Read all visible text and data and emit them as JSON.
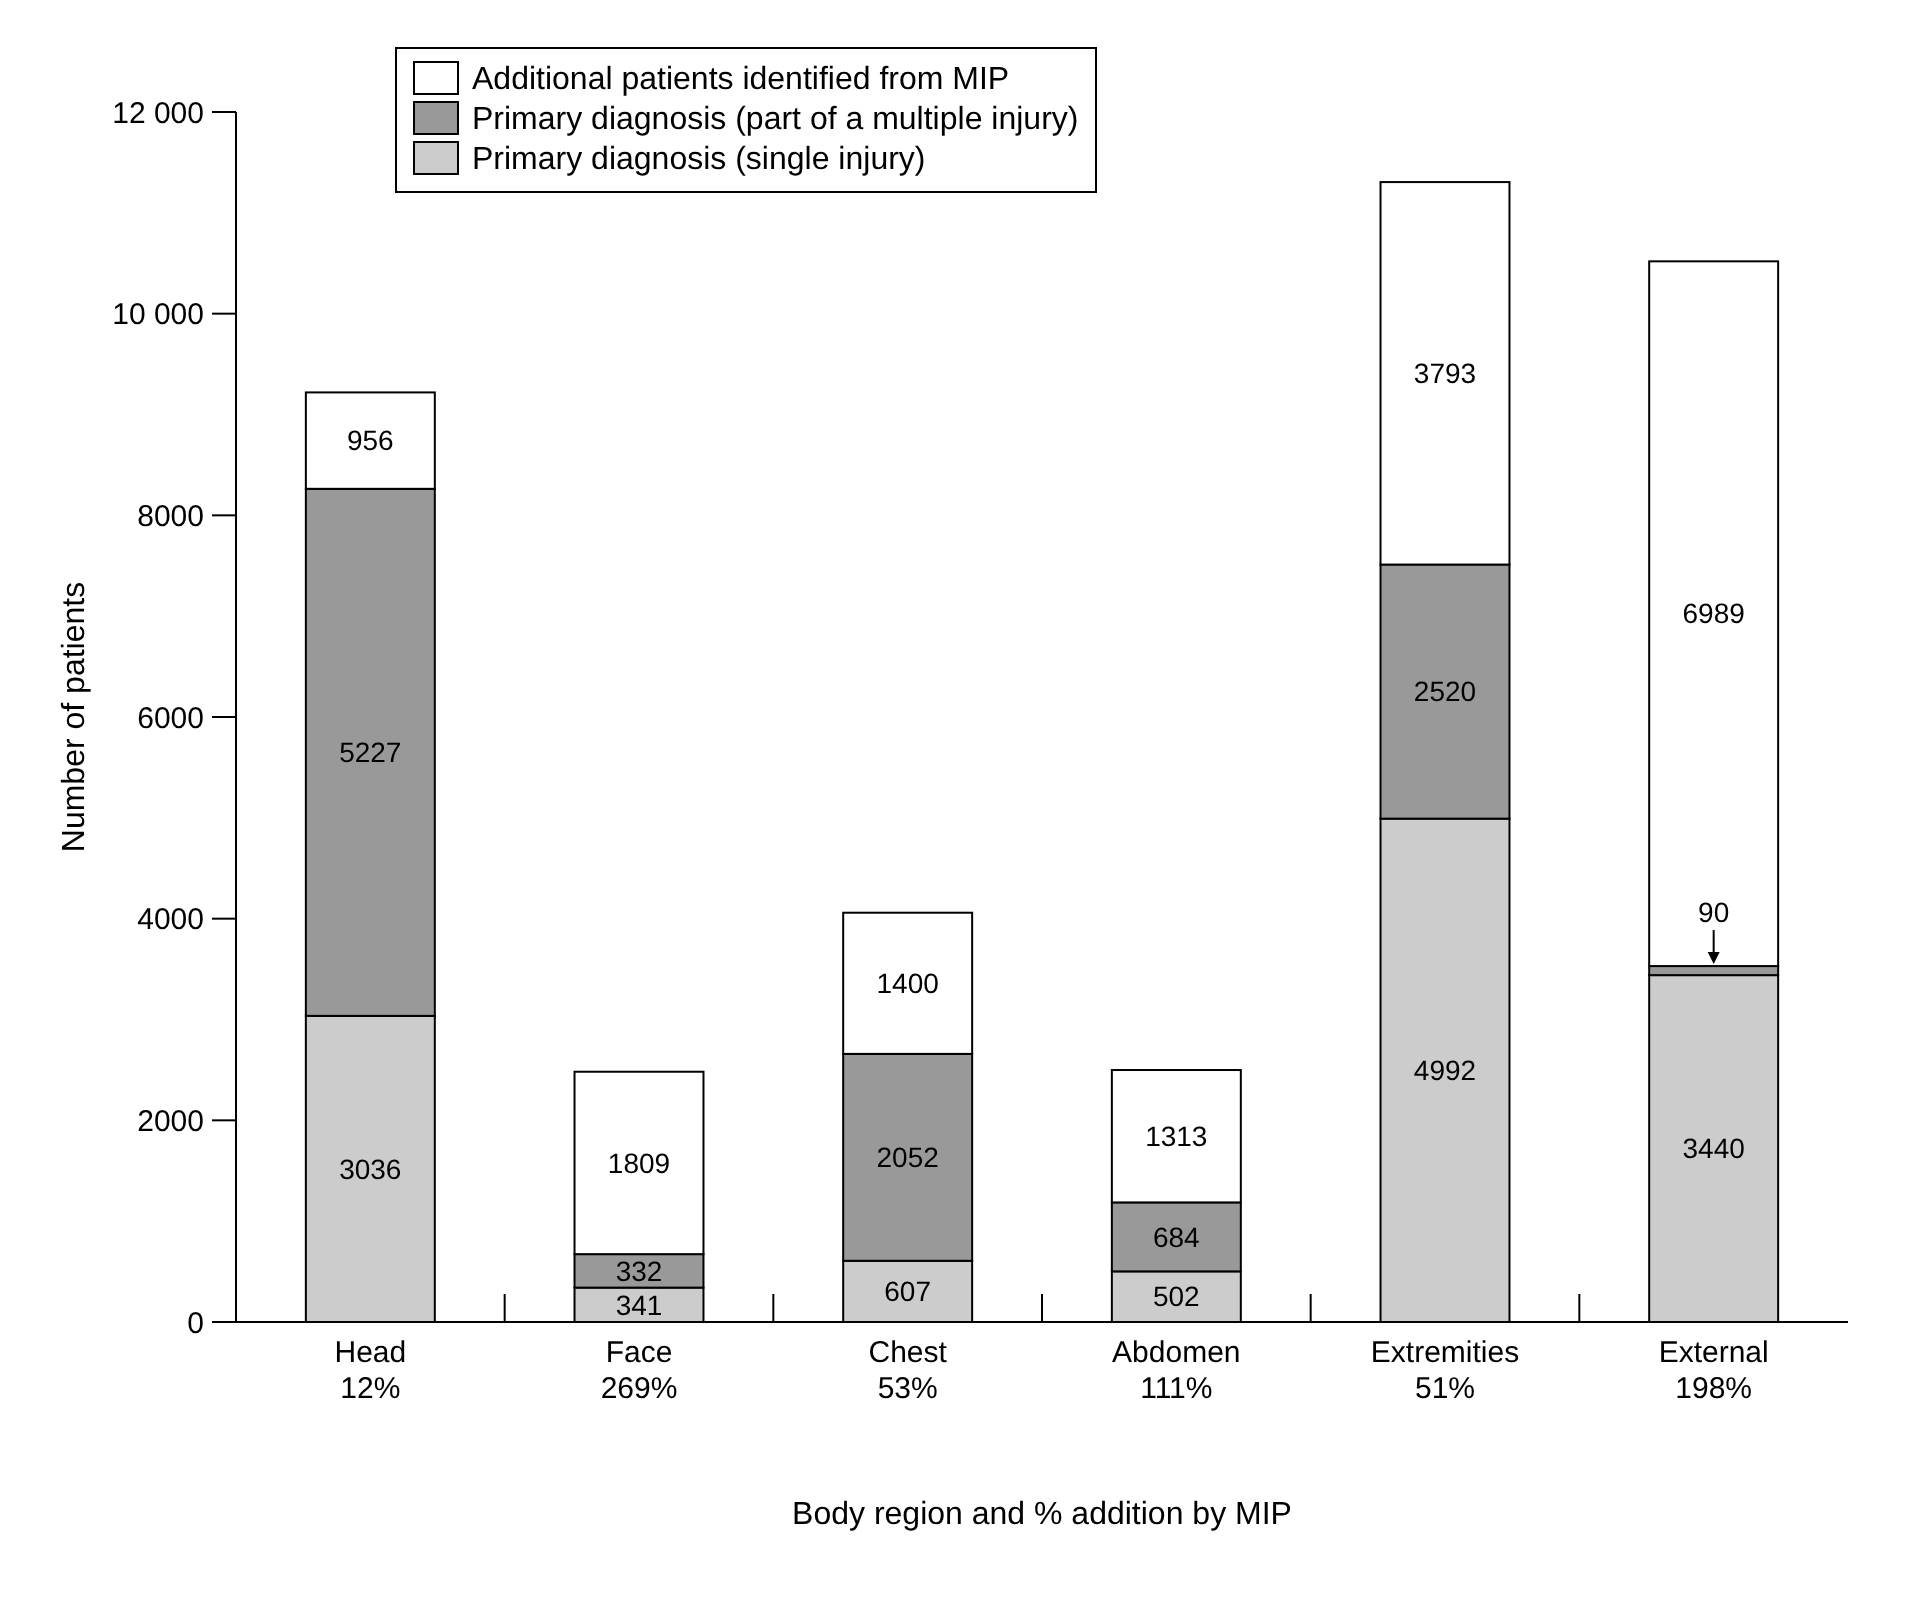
{
  "chart_data": {
    "type": "bar",
    "stacked": true,
    "xlabel": "Body region and % addition by MIP",
    "ylabel": "Number of patients",
    "categories": [
      "Head\n12%",
      "Face\n269%",
      "Chest\n53%",
      "Abdomen\n111%",
      "Extremities\n51%",
      "External\n198%"
    ],
    "series": [
      {
        "name": "Primary diagnosis (single injury)",
        "color": "#cccccc",
        "values": [
          3036,
          341,
          607,
          502,
          4992,
          3440
        ]
      },
      {
        "name": "Primary diagnosis (part of a multiple injury)",
        "color": "#999999",
        "values": [
          5227,
          332,
          2052,
          684,
          2520,
          90
        ]
      },
      {
        "name": "Additional patients identified from MIP",
        "color": "#ffffff",
        "values": [
          956,
          1809,
          1400,
          1313,
          3793,
          6989
        ]
      }
    ],
    "ylim": [
      0,
      12000
    ],
    "yticks": [
      0,
      2000,
      4000,
      6000,
      8000,
      {
        "value": 10000,
        "label": "10 000"
      },
      {
        "value": 12000,
        "label": "12 000"
      }
    ],
    "data_labels": true,
    "legend": "top left",
    "grid": false
  }
}
